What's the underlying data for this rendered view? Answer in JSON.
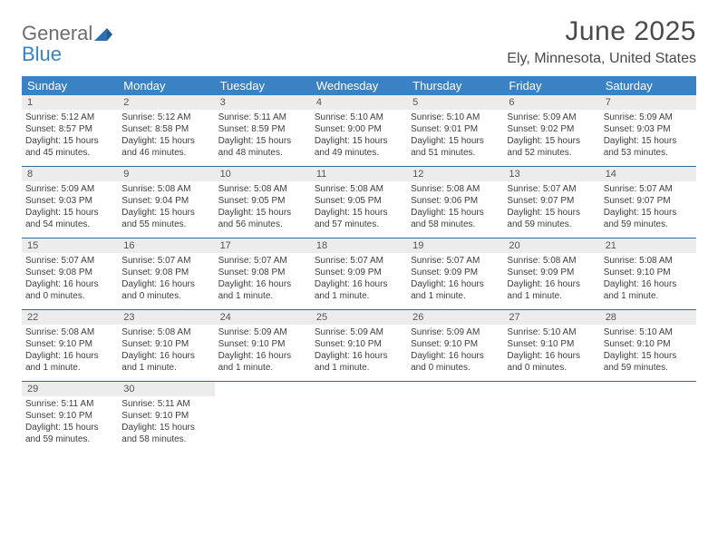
{
  "logo": {
    "word1": "General",
    "word2": "Blue"
  },
  "title": "June 2025",
  "location": "Ely, Minnesota, United States",
  "colors": {
    "header_bg": "#3a82c4",
    "header_text": "#ffffff",
    "daynum_bg": "#ececec",
    "week_border": "#2f6aa3",
    "text": "#3d3d3d"
  },
  "dow": [
    "Sunday",
    "Monday",
    "Tuesday",
    "Wednesday",
    "Thursday",
    "Friday",
    "Saturday"
  ],
  "weeks": [
    [
      {
        "n": "1",
        "sr": "Sunrise: 5:12 AM",
        "ss": "Sunset: 8:57 PM",
        "d1": "Daylight: 15 hours",
        "d2": "and 45 minutes."
      },
      {
        "n": "2",
        "sr": "Sunrise: 5:12 AM",
        "ss": "Sunset: 8:58 PM",
        "d1": "Daylight: 15 hours",
        "d2": "and 46 minutes."
      },
      {
        "n": "3",
        "sr": "Sunrise: 5:11 AM",
        "ss": "Sunset: 8:59 PM",
        "d1": "Daylight: 15 hours",
        "d2": "and 48 minutes."
      },
      {
        "n": "4",
        "sr": "Sunrise: 5:10 AM",
        "ss": "Sunset: 9:00 PM",
        "d1": "Daylight: 15 hours",
        "d2": "and 49 minutes."
      },
      {
        "n": "5",
        "sr": "Sunrise: 5:10 AM",
        "ss": "Sunset: 9:01 PM",
        "d1": "Daylight: 15 hours",
        "d2": "and 51 minutes."
      },
      {
        "n": "6",
        "sr": "Sunrise: 5:09 AM",
        "ss": "Sunset: 9:02 PM",
        "d1": "Daylight: 15 hours",
        "d2": "and 52 minutes."
      },
      {
        "n": "7",
        "sr": "Sunrise: 5:09 AM",
        "ss": "Sunset: 9:03 PM",
        "d1": "Daylight: 15 hours",
        "d2": "and 53 minutes."
      }
    ],
    [
      {
        "n": "8",
        "sr": "Sunrise: 5:09 AM",
        "ss": "Sunset: 9:03 PM",
        "d1": "Daylight: 15 hours",
        "d2": "and 54 minutes."
      },
      {
        "n": "9",
        "sr": "Sunrise: 5:08 AM",
        "ss": "Sunset: 9:04 PM",
        "d1": "Daylight: 15 hours",
        "d2": "and 55 minutes."
      },
      {
        "n": "10",
        "sr": "Sunrise: 5:08 AM",
        "ss": "Sunset: 9:05 PM",
        "d1": "Daylight: 15 hours",
        "d2": "and 56 minutes."
      },
      {
        "n": "11",
        "sr": "Sunrise: 5:08 AM",
        "ss": "Sunset: 9:05 PM",
        "d1": "Daylight: 15 hours",
        "d2": "and 57 minutes."
      },
      {
        "n": "12",
        "sr": "Sunrise: 5:08 AM",
        "ss": "Sunset: 9:06 PM",
        "d1": "Daylight: 15 hours",
        "d2": "and 58 minutes."
      },
      {
        "n": "13",
        "sr": "Sunrise: 5:07 AM",
        "ss": "Sunset: 9:07 PM",
        "d1": "Daylight: 15 hours",
        "d2": "and 59 minutes."
      },
      {
        "n": "14",
        "sr": "Sunrise: 5:07 AM",
        "ss": "Sunset: 9:07 PM",
        "d1": "Daylight: 15 hours",
        "d2": "and 59 minutes."
      }
    ],
    [
      {
        "n": "15",
        "sr": "Sunrise: 5:07 AM",
        "ss": "Sunset: 9:08 PM",
        "d1": "Daylight: 16 hours",
        "d2": "and 0 minutes."
      },
      {
        "n": "16",
        "sr": "Sunrise: 5:07 AM",
        "ss": "Sunset: 9:08 PM",
        "d1": "Daylight: 16 hours",
        "d2": "and 0 minutes."
      },
      {
        "n": "17",
        "sr": "Sunrise: 5:07 AM",
        "ss": "Sunset: 9:08 PM",
        "d1": "Daylight: 16 hours",
        "d2": "and 1 minute."
      },
      {
        "n": "18",
        "sr": "Sunrise: 5:07 AM",
        "ss": "Sunset: 9:09 PM",
        "d1": "Daylight: 16 hours",
        "d2": "and 1 minute."
      },
      {
        "n": "19",
        "sr": "Sunrise: 5:07 AM",
        "ss": "Sunset: 9:09 PM",
        "d1": "Daylight: 16 hours",
        "d2": "and 1 minute."
      },
      {
        "n": "20",
        "sr": "Sunrise: 5:08 AM",
        "ss": "Sunset: 9:09 PM",
        "d1": "Daylight: 16 hours",
        "d2": "and 1 minute."
      },
      {
        "n": "21",
        "sr": "Sunrise: 5:08 AM",
        "ss": "Sunset: 9:10 PM",
        "d1": "Daylight: 16 hours",
        "d2": "and 1 minute."
      }
    ],
    [
      {
        "n": "22",
        "sr": "Sunrise: 5:08 AM",
        "ss": "Sunset: 9:10 PM",
        "d1": "Daylight: 16 hours",
        "d2": "and 1 minute."
      },
      {
        "n": "23",
        "sr": "Sunrise: 5:08 AM",
        "ss": "Sunset: 9:10 PM",
        "d1": "Daylight: 16 hours",
        "d2": "and 1 minute."
      },
      {
        "n": "24",
        "sr": "Sunrise: 5:09 AM",
        "ss": "Sunset: 9:10 PM",
        "d1": "Daylight: 16 hours",
        "d2": "and 1 minute."
      },
      {
        "n": "25",
        "sr": "Sunrise: 5:09 AM",
        "ss": "Sunset: 9:10 PM",
        "d1": "Daylight: 16 hours",
        "d2": "and 1 minute."
      },
      {
        "n": "26",
        "sr": "Sunrise: 5:09 AM",
        "ss": "Sunset: 9:10 PM",
        "d1": "Daylight: 16 hours",
        "d2": "and 0 minutes."
      },
      {
        "n": "27",
        "sr": "Sunrise: 5:10 AM",
        "ss": "Sunset: 9:10 PM",
        "d1": "Daylight: 16 hours",
        "d2": "and 0 minutes."
      },
      {
        "n": "28",
        "sr": "Sunrise: 5:10 AM",
        "ss": "Sunset: 9:10 PM",
        "d1": "Daylight: 15 hours",
        "d2": "and 59 minutes."
      }
    ],
    [
      {
        "n": "29",
        "sr": "Sunrise: 5:11 AM",
        "ss": "Sunset: 9:10 PM",
        "d1": "Daylight: 15 hours",
        "d2": "and 59 minutes."
      },
      {
        "n": "30",
        "sr": "Sunrise: 5:11 AM",
        "ss": "Sunset: 9:10 PM",
        "d1": "Daylight: 15 hours",
        "d2": "and 58 minutes."
      },
      {
        "empty": true
      },
      {
        "empty": true
      },
      {
        "empty": true
      },
      {
        "empty": true
      },
      {
        "empty": true
      }
    ]
  ]
}
